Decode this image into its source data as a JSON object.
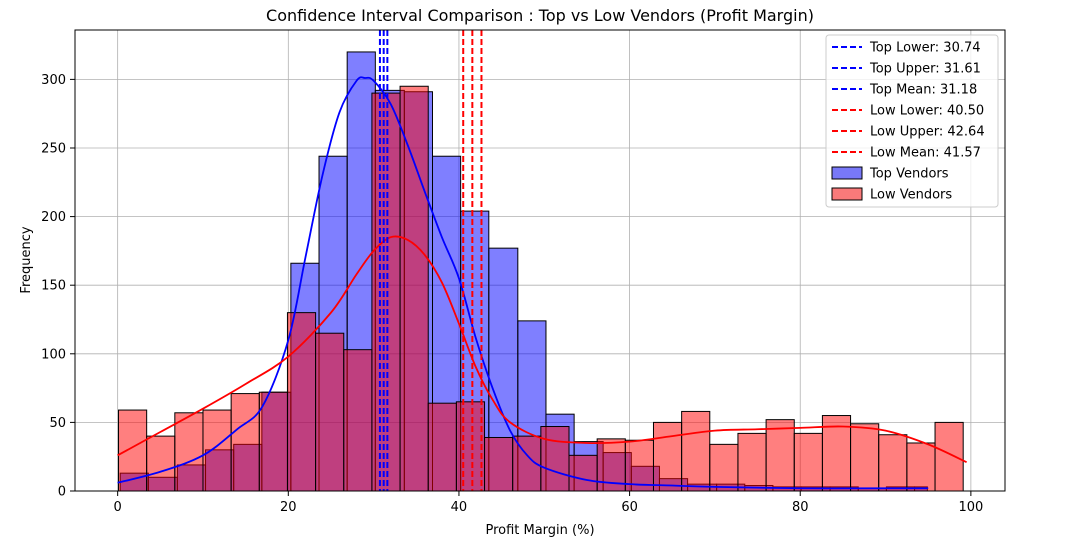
{
  "chart_data": {
    "type": "bar",
    "title": "Confidence Interval Comparison : Top vs Low Vendors (Profit Margin)",
    "xlabel": "Profit Margin (%)",
    "ylabel": "Frequency",
    "xlim": [
      -5,
      104
    ],
    "ylim": [
      0,
      336
    ],
    "xticks": [
      0,
      20,
      40,
      60,
      80,
      100
    ],
    "yticks": [
      0,
      50,
      100,
      150,
      200,
      250,
      300
    ],
    "grid": true,
    "legend_position": "top-right",
    "colors": {
      "top": "#0000ff",
      "low": "#ff0000",
      "top_fill": "#7878f8",
      "low_fill": "#fa7a7a",
      "overlap_fill": "#b4386f"
    },
    "series": [
      {
        "name": "Top Vendors",
        "bin_edges": [
          0.3,
          3.6,
          7.0,
          10.3,
          13.6,
          16.9,
          20.3,
          23.6,
          26.9,
          30.2,
          33.6,
          36.9,
          40.2,
          43.5,
          46.9,
          50.2,
          53.5,
          56.9,
          60.2,
          63.5,
          66.8,
          70.2,
          73.5,
          76.8,
          80.1,
          83.5,
          86.8,
          90.1,
          93.4,
          94.9
        ],
        "counts": [
          13,
          10,
          19,
          30,
          34,
          72,
          166,
          244,
          320,
          292,
          291,
          244,
          204,
          177,
          124,
          56,
          36,
          28,
          18,
          9,
          5,
          5,
          4,
          3,
          3,
          3,
          2,
          3,
          3
        ]
      },
      {
        "name": "Low Vendors",
        "bin_edges": [
          0.1,
          3.4,
          6.7,
          10.0,
          13.3,
          16.6,
          19.9,
          23.2,
          26.5,
          29.8,
          33.1,
          36.4,
          39.7,
          43.0,
          46.3,
          49.6,
          52.9,
          56.2,
          59.5,
          62.8,
          66.1,
          69.4,
          72.7,
          76.0,
          79.3,
          82.6,
          85.9,
          89.2,
          92.5,
          95.8,
          99.1
        ],
        "counts": [
          59,
          40,
          57,
          59,
          71,
          72,
          130,
          115,
          103,
          290,
          295,
          64,
          65,
          39,
          40,
          47,
          26,
          38,
          37,
          50,
          58,
          34,
          42,
          52,
          42,
          55,
          49,
          41,
          35,
          50
        ]
      }
    ],
    "kde": [
      {
        "name": "Top Vendors",
        "x": [
          0,
          5,
          10,
          14,
          17,
          20,
          22,
          24,
          26,
          28,
          29,
          30,
          32,
          34,
          36,
          38,
          40,
          42,
          44,
          46,
          48,
          50,
          55,
          60,
          65,
          70,
          80,
          90,
          95
        ],
        "y": [
          6,
          14,
          26,
          45,
          62,
          110,
          170,
          230,
          276,
          299,
          301,
          299,
          282,
          252,
          218,
          185,
          155,
          111,
          74,
          44,
          26,
          17,
          8,
          5,
          4,
          3,
          2,
          2,
          2
        ]
      },
      {
        "name": "Low Vendors",
        "x": [
          0,
          5,
          10,
          15,
          20,
          25,
          28,
          30,
          32,
          34,
          36,
          38,
          40,
          42,
          44,
          46,
          50,
          55,
          60,
          65,
          70,
          75,
          80,
          85,
          90,
          95,
          99.5
        ],
        "y": [
          26,
          43,
          60,
          78,
          98,
          130,
          158,
          175,
          185,
          183,
          172,
          152,
          122,
          90,
          66,
          50,
          38,
          35,
          36,
          40,
          44,
          45,
          46,
          47,
          44,
          34,
          21
        ]
      }
    ],
    "ci_lines": [
      {
        "label": "Top Lower: 30.74",
        "x": 30.74,
        "color": "#0000ff"
      },
      {
        "label": "Top Upper: 31.61",
        "x": 31.61,
        "color": "#0000ff"
      },
      {
        "label": "Top Mean: 31.18",
        "x": 31.18,
        "color": "#0000ff"
      },
      {
        "label": "Low Lower: 40.50",
        "x": 40.5,
        "color": "#ff0000"
      },
      {
        "label": "Low Upper: 42.64",
        "x": 42.64,
        "color": "#ff0000"
      },
      {
        "label": "Low Mean: 41.57",
        "x": 41.57,
        "color": "#ff0000"
      }
    ],
    "legend": [
      {
        "label": "Top Lower: 30.74",
        "kind": "line",
        "color": "#0000ff"
      },
      {
        "label": "Top Upper: 31.61",
        "kind": "line",
        "color": "#0000ff"
      },
      {
        "label": "Top Mean: 31.18",
        "kind": "line",
        "color": "#0000ff"
      },
      {
        "label": "Low Lower: 40.50",
        "kind": "line",
        "color": "#ff0000"
      },
      {
        "label": "Low Upper: 42.64",
        "kind": "line",
        "color": "#ff0000"
      },
      {
        "label": "Low Mean: 41.57",
        "kind": "line",
        "color": "#ff0000"
      },
      {
        "label": "Top Vendors",
        "kind": "patch",
        "color": "#7878f8"
      },
      {
        "label": "Low Vendors",
        "kind": "patch",
        "color": "#fa7a7a"
      }
    ]
  }
}
